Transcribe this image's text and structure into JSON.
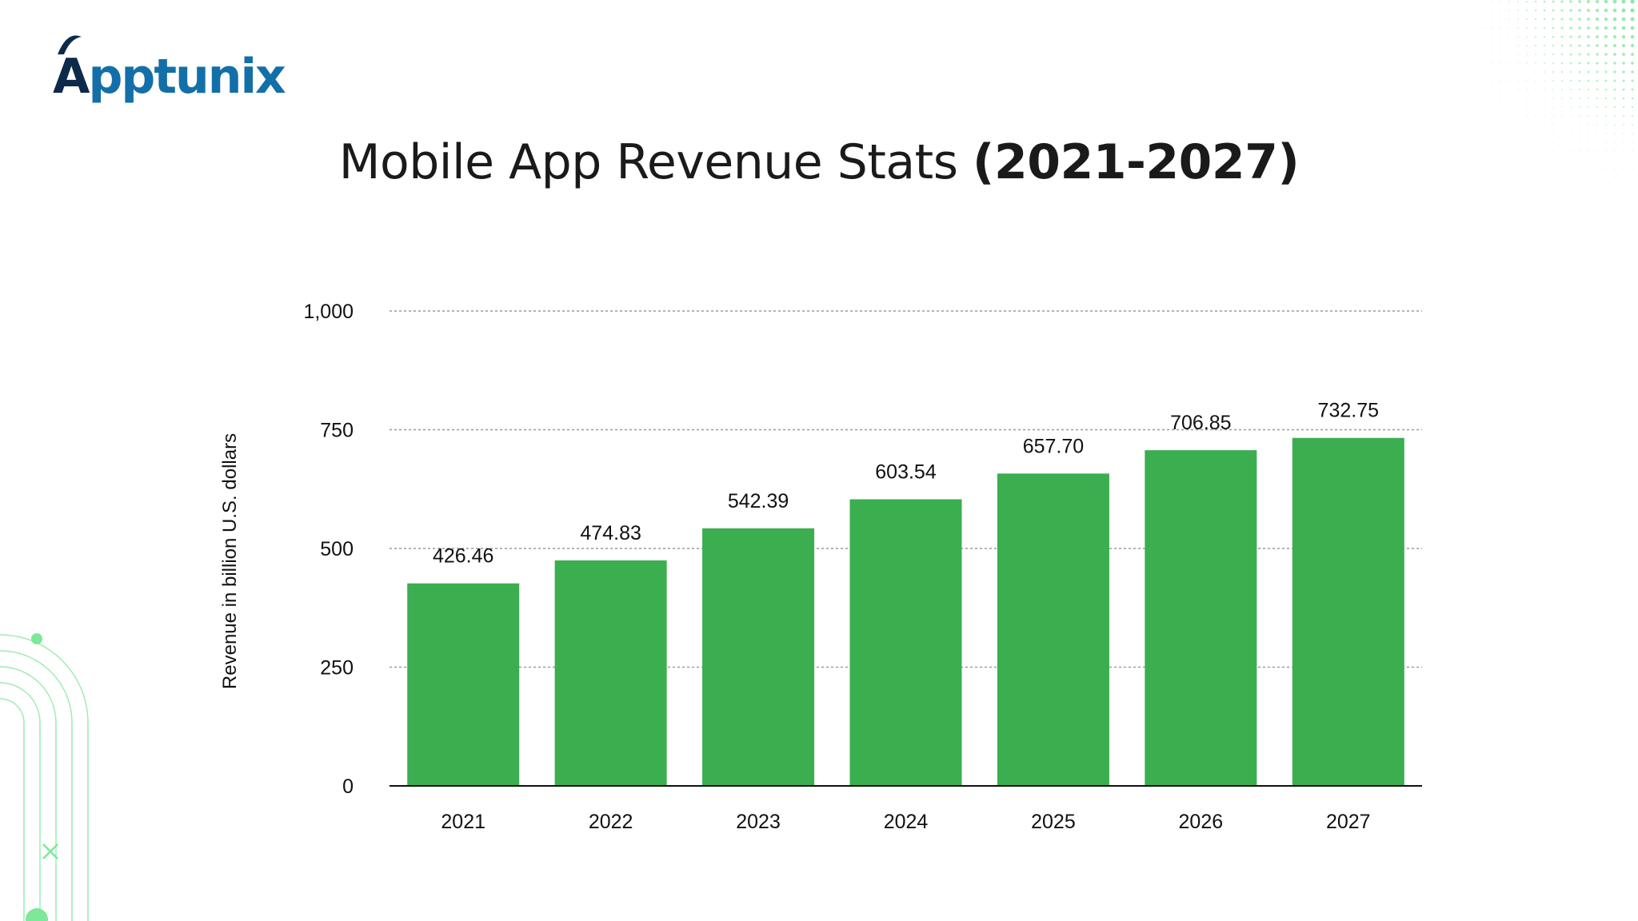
{
  "brand": {
    "logo_first": "A",
    "logo_rest": "pptunix",
    "name_color": "#136fa8",
    "dark_color": "#0d2a4a"
  },
  "page": {
    "title_light": "Mobile App Revenue Stats ",
    "title_bold": "(2021-2027)"
  },
  "colors": {
    "bar": "#3bae4f",
    "grid": "#9a9a9a",
    "axis": "#111111",
    "decor": "#7de89a"
  },
  "chart_data": {
    "type": "bar",
    "title": "Mobile App Revenue Stats (2021-2027)",
    "xlabel": "",
    "ylabel": "Revenue in billion U.S. dollars",
    "categories": [
      "2021",
      "2022",
      "2023",
      "2024",
      "2025",
      "2026",
      "2027"
    ],
    "values": [
      426.46,
      474.83,
      542.39,
      603.54,
      657.7,
      706.85,
      732.75
    ],
    "value_labels": [
      "426.46",
      "474.83",
      "542.39",
      "603.54",
      "657.70",
      "706.85",
      "732.75"
    ],
    "ylim": [
      0,
      1000
    ],
    "yticks": [
      0,
      250,
      500,
      750,
      1000
    ],
    "ytick_labels": [
      "0",
      "250",
      "500",
      "750",
      "1,000"
    ],
    "grid": true,
    "legend": "none"
  }
}
